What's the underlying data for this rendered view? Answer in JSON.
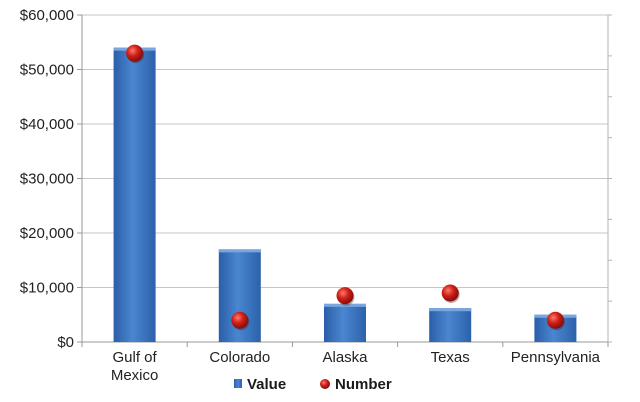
{
  "chart_data": {
    "type": "bar",
    "categories": [
      [
        "Gulf of",
        "Mexico"
      ],
      [
        "Colorado"
      ],
      [
        "Alaska"
      ],
      [
        "Texas"
      ],
      [
        "Pennsylvania"
      ]
    ],
    "series": [
      {
        "name": "Value",
        "type": "bar",
        "values": [
          54000,
          17000,
          7000,
          6200,
          5000
        ],
        "color": "#3b73bf"
      },
      {
        "name": "Number",
        "type": "scatter",
        "values": [
          53000,
          4000,
          8500,
          9000,
          4000
        ],
        "color": "#d11818"
      }
    ],
    "ylim": [
      0,
      60000
    ],
    "yticks": [
      0,
      10000,
      20000,
      30000,
      40000,
      50000,
      60000
    ],
    "ytick_labels": [
      "$0",
      "$10,000",
      "$20,000",
      "$30,000",
      "$40,000",
      "$50,000",
      "$60,000"
    ],
    "grid": true,
    "legend_position": "bottom"
  }
}
